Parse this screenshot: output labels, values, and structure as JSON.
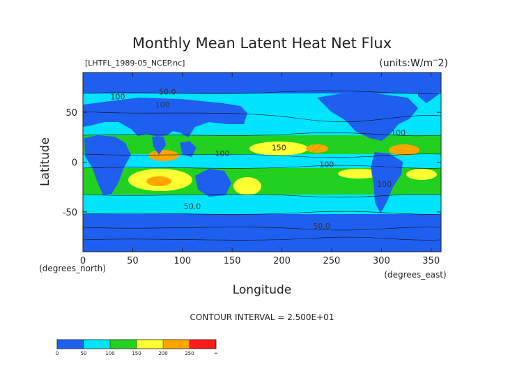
{
  "chart_data": {
    "type": "heatmap",
    "title": "Monthly Mean Latent Heat Net Flux",
    "subtitle": "[LHTFL_1989-05_NCEP.nc]",
    "units": "(units:W/m^2)",
    "xlabel": "Longitude",
    "ylabel": "Latitude",
    "x_unit_label": "(degrees_east)",
    "y_unit_label": "(degrees_north)",
    "xlim": [
      0,
      360
    ],
    "ylim": [
      -90,
      90
    ],
    "x_ticks": [
      0,
      50,
      100,
      150,
      200,
      250,
      300,
      350
    ],
    "y_ticks": [
      50,
      0,
      -50
    ],
    "contour_interval_text": "CONTOUR INTERVAL = 2.500E+01",
    "contour_labels": [
      {
        "text": "100",
        "x": 35,
        "y": 63
      },
      {
        "text": "50.0",
        "x": 85,
        "y": 68
      },
      {
        "text": "100",
        "x": 80,
        "y": 55
      },
      {
        "text": "100",
        "x": 140,
        "y": 6
      },
      {
        "text": "150",
        "x": 197,
        "y": 12
      },
      {
        "text": "100",
        "x": 245,
        "y": -5
      },
      {
        "text": "100",
        "x": 317,
        "y": 27
      },
      {
        "text": "100",
        "x": 303,
        "y": -25
      },
      {
        "text": "50.0",
        "x": 110,
        "y": -47
      },
      {
        "text": "50.0",
        "x": 240,
        "y": -67
      }
    ],
    "colorbar": {
      "levels": [
        0,
        50,
        100,
        150,
        200,
        250,
        "∞"
      ],
      "colors": [
        "#1f5ff0",
        "#00e4ff",
        "#22d11f",
        "#ffff33",
        "#ffa500",
        "#ff1a1a"
      ]
    }
  }
}
